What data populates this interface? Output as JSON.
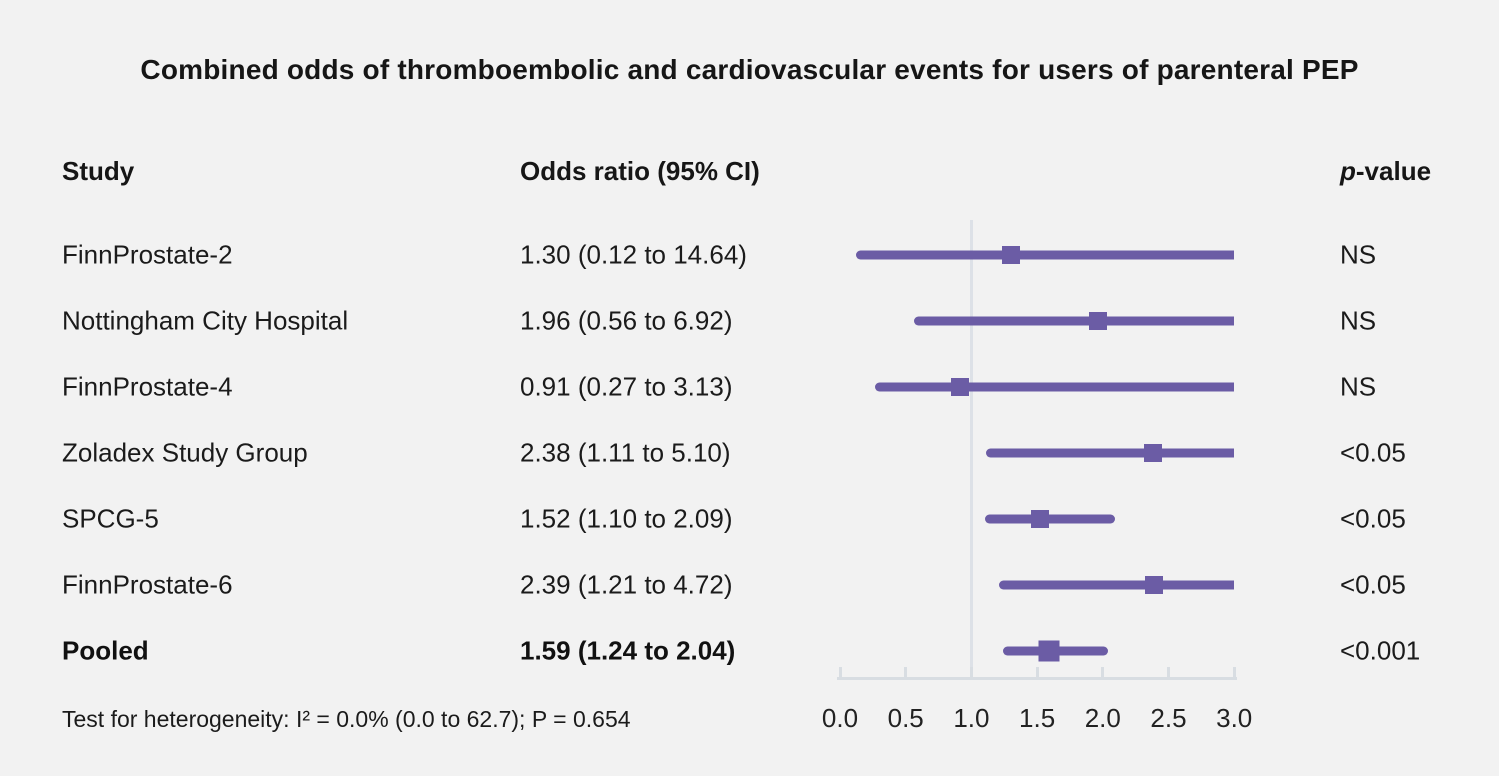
{
  "title": "Combined odds of thromboembolic and cardiovascular events for users of parenteral PEP",
  "columns": {
    "study": "Study",
    "odds_ratio": "Odds ratio (95% CI)",
    "p_prefix": "p",
    "p_suffix": "-value"
  },
  "footer": "Test for heterogeneity: I² = 0.0% (0.0 to 62.7); P = 0.654",
  "colors": {
    "accent": "#6b5ca5",
    "background": "#f2f2f2",
    "axis": "#d8dde2",
    "reference_line": "#dde1e7",
    "text": "#1b1b1b"
  },
  "chart_data": {
    "type": "forest",
    "title": "Combined odds of thromboembolic and cardiovascular events for users of parenteral PEP",
    "xlim": [
      0.0,
      3.0
    ],
    "reference_line": 1.0,
    "ticks": [
      {
        "value": 0.0,
        "label": "0.0"
      },
      {
        "value": 0.5,
        "label": "0.5"
      },
      {
        "value": 1.0,
        "label": "1.0"
      },
      {
        "value": 1.5,
        "label": "1.5"
      },
      {
        "value": 2.0,
        "label": "2.0"
      },
      {
        "value": 2.5,
        "label": "2.5"
      },
      {
        "value": 3.0,
        "label": "3.0"
      }
    ],
    "rows": [
      {
        "study": "FinnProstate-2",
        "estimate_label": "1.30 (0.12 to 14.64)",
        "or": 1.3,
        "ci_low": 0.12,
        "ci_high": 14.64,
        "p_value": "NS",
        "bold": false
      },
      {
        "study": "Nottingham City Hospital",
        "estimate_label": "1.96 (0.56 to 6.92)",
        "or": 1.96,
        "ci_low": 0.56,
        "ci_high": 6.92,
        "p_value": "NS",
        "bold": false
      },
      {
        "study": "FinnProstate-4",
        "estimate_label": "0.91 (0.27 to 3.13)",
        "or": 0.91,
        "ci_low": 0.27,
        "ci_high": 3.13,
        "p_value": "NS",
        "bold": false
      },
      {
        "study": "Zoladex Study Group",
        "estimate_label": "2.38 (1.11 to 5.10)",
        "or": 2.38,
        "ci_low": 1.11,
        "ci_high": 5.1,
        "p_value": "<0.05",
        "bold": false
      },
      {
        "study": "SPCG-5",
        "estimate_label": "1.52 (1.10 to 2.09)",
        "or": 1.52,
        "ci_low": 1.1,
        "ci_high": 2.09,
        "p_value": "<0.05",
        "bold": false
      },
      {
        "study": "FinnProstate-6",
        "estimate_label": "2.39 (1.21 to 4.72)",
        "or": 2.39,
        "ci_low": 1.21,
        "ci_high": 4.72,
        "p_value": "<0.05",
        "bold": false
      },
      {
        "study": "Pooled",
        "estimate_label": "1.59 (1.24 to 2.04)",
        "or": 1.59,
        "ci_low": 1.24,
        "ci_high": 2.04,
        "p_value": "<0.001",
        "bold": true
      }
    ]
  }
}
